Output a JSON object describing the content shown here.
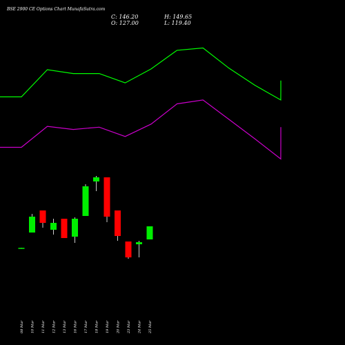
{
  "header": {
    "title": "BSE 2900 CE Options Chart MunafaSutra.com",
    "close_label": "C: 146.20",
    "open_label": "O: 127.00",
    "high_label": "H: 149.65",
    "low_label": "L: 119.40"
  },
  "colors": {
    "background": "#000000",
    "bullish": "#00ee00",
    "bearish": "#ff0000",
    "upper_band": "#00ff00",
    "lower_band": "#cc00cc",
    "text": "#ffffff"
  },
  "chart_data": {
    "type": "candlestick",
    "categories": [
      "08 Mar",
      "10 Mar",
      "11 Mar",
      "12 Mar",
      "13 Mar",
      "16 Mar",
      "17 Mar",
      "18 Mar",
      "19 Mar",
      "20 Mar",
      "23 Mar",
      "24 Mar",
      "25 Mar"
    ],
    "candles": [
      {
        "open": 35.5,
        "high": 36.0,
        "low": 35.3,
        "close": 35.8
      },
      {
        "open": 58.0,
        "high": 85.0,
        "low": 58.0,
        "close": 81.0
      },
      {
        "open": 90.0,
        "high": 90.0,
        "low": 65.0,
        "close": 72.0
      },
      {
        "open": 62.0,
        "high": 78.0,
        "low": 55.0,
        "close": 72.0
      },
      {
        "open": 78.0,
        "high": 78.0,
        "low": 50.0,
        "close": 50.0
      },
      {
        "open": 52.0,
        "high": 80.0,
        "low": 43.0,
        "close": 78.0
      },
      {
        "open": 82.0,
        "high": 128.0,
        "low": 82.0,
        "close": 125.0
      },
      {
        "open": 132.0,
        "high": 140.0,
        "low": 118.0,
        "close": 138.0
      },
      {
        "open": 138.0,
        "high": 138.0,
        "low": 73.0,
        "close": 81.0
      },
      {
        "open": 90.0,
        "high": 90.0,
        "low": 46.0,
        "close": 53.0
      },
      {
        "open": 45.0,
        "high": 45.0,
        "low": 20.0,
        "close": 22.0
      },
      {
        "open": 41.0,
        "high": 46.0,
        "low": 22.0,
        "close": 44.0
      },
      {
        "open": 48.0,
        "high": 67.0,
        "low": 48.0,
        "close": 67.0
      }
    ],
    "bands": {
      "upper": [
        393,
        393,
        428,
        423,
        423,
        411,
        429,
        453,
        456,
        430,
        408,
        389,
        400,
        414
      ],
      "lower": [
        328,
        328,
        355,
        351,
        354,
        342,
        358,
        384,
        389,
        364,
        339,
        313,
        335,
        354
      ]
    }
  }
}
